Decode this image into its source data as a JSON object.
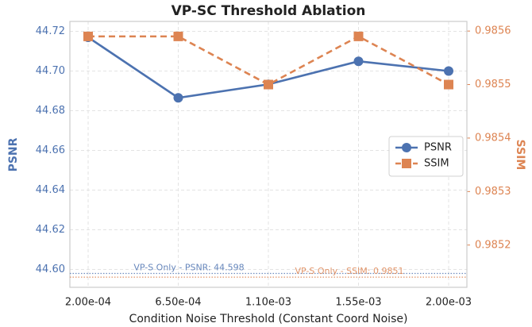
{
  "chart_data": {
    "type": "line",
    "title": "VP-SC Threshold Ablation",
    "xlabel": "Condition Noise Threshold (Constant Coord Noise)",
    "ylabel": "PSNR",
    "y2label": "SSIM",
    "categories": [
      "2.00e-04",
      "6.50e-04",
      "1.10e-03",
      "1.55e-03",
      "2.00e-03"
    ],
    "series": [
      {
        "name": "PSNR",
        "color": "#4c72b0",
        "axis": "y",
        "linestyle": "solid",
        "marker": "circle",
        "values": [
          44.717,
          44.6865,
          44.6933,
          44.7049,
          44.7
        ]
      },
      {
        "name": "SSIM",
        "color": "#dd8452",
        "axis": "y2",
        "linestyle": "dashed",
        "marker": "square",
        "values": [
          0.98559,
          0.98559,
          0.9855,
          0.98559,
          0.9855
        ]
      }
    ],
    "ylim": [
      44.591,
      44.725
    ],
    "yticks": [
      {
        "value": 44.6,
        "label": "44.60"
      },
      44.62,
      44.64,
      44.66,
      44.68,
      {
        "value": 44.7,
        "label": "44.70"
      },
      44.72
    ],
    "y2lim": [
      0.985121,
      0.985618
    ],
    "y2ticks": [
      0.9852,
      0.9853,
      0.9854,
      0.9855,
      0.9856
    ],
    "hlines": [
      {
        "axis": "y",
        "value": 44.598,
        "label": "VP-S Only - PSNR: 44.598",
        "color": "#4c72b0"
      },
      {
        "axis": "y2",
        "value": 0.98514,
        "label": "VP-S Only - SSIM: 0.9851",
        "color": "#dd8452"
      }
    ],
    "grid": true,
    "legend": "center right"
  }
}
